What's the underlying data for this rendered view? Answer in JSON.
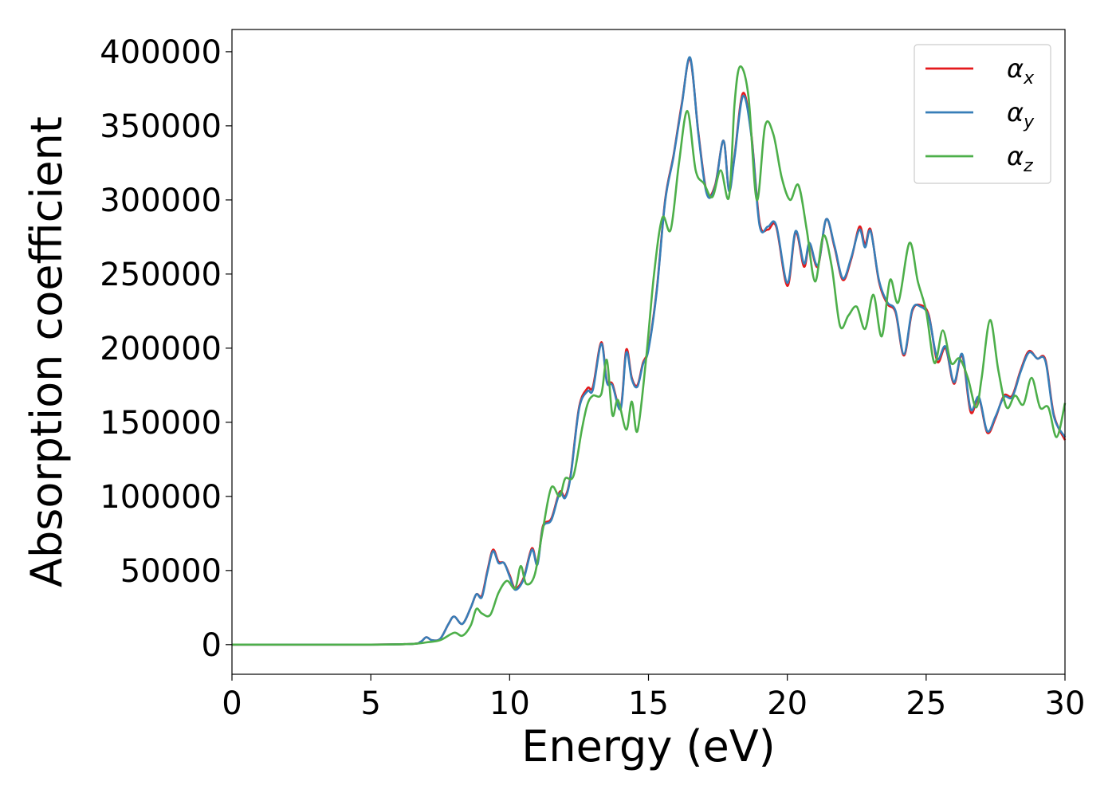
{
  "chart_data": {
    "type": "line",
    "xlabel": "Energy (eV)",
    "ylabel": "Absorption coefficient",
    "xlim": [
      0,
      30
    ],
    "ylim": [
      -20000,
      415000
    ],
    "xticks": [
      "0",
      "5",
      "10",
      "15",
      "20",
      "25",
      "30"
    ],
    "yticks": [
      "0",
      "50000",
      "100000",
      "150000",
      "200000",
      "250000",
      "300000",
      "350000",
      "400000"
    ],
    "legend_position": "top-right",
    "grid": false,
    "series": [
      {
        "name": "αx",
        "symbol": "α",
        "subscript": "x",
        "color": "#e41a1c",
        "x": [
          0,
          5,
          6.5,
          6.8,
          7.0,
          7.2,
          7.5,
          7.8,
          8.0,
          8.3,
          8.6,
          8.8,
          9.0,
          9.2,
          9.4,
          9.6,
          9.8,
          10.0,
          10.2,
          10.5,
          10.8,
          11.0,
          11.2,
          11.5,
          11.8,
          12.0,
          12.2,
          12.5,
          12.8,
          13.0,
          13.3,
          13.5,
          13.7,
          14.0,
          14.2,
          14.4,
          14.6,
          14.8,
          15.0,
          15.3,
          15.6,
          15.9,
          16.2,
          16.5,
          16.8,
          17.1,
          17.4,
          17.7,
          17.9,
          18.1,
          18.4,
          18.7,
          19.0,
          19.3,
          19.6,
          20.0,
          20.3,
          20.6,
          20.8,
          21.1,
          21.4,
          21.7,
          22.0,
          22.3,
          22.6,
          22.8,
          23.0,
          23.3,
          23.6,
          23.9,
          24.2,
          24.5,
          24.8,
          25.1,
          25.4,
          25.7,
          26.0,
          26.3,
          26.6,
          26.9,
          27.2,
          27.5,
          27.8,
          28.1,
          28.4,
          28.7,
          29.0,
          29.3,
          29.6,
          30.0
        ],
        "values": [
          0,
          0,
          500,
          2000,
          5000,
          3000,
          4000,
          14000,
          19000,
          14000,
          25000,
          34000,
          33000,
          50000,
          64000,
          56000,
          55000,
          47000,
          38000,
          45000,
          65000,
          55000,
          80000,
          85000,
          103000,
          100000,
          115000,
          160000,
          173000,
          174000,
          204000,
          178000,
          176000,
          160000,
          199000,
          180000,
          175000,
          190000,
          200000,
          240000,
          300000,
          330000,
          365000,
          395000,
          345000,
          305000,
          310000,
          340000,
          307000,
          330000,
          372000,
          345000,
          285000,
          280000,
          282000,
          242000,
          278000,
          255000,
          270000,
          255000,
          287000,
          268000,
          246000,
          260000,
          282000,
          270000,
          280000,
          245000,
          230000,
          224000,
          195000,
          225000,
          229000,
          222000,
          191000,
          200000,
          176000,
          195000,
          157000,
          166000,
          143000,
          153000,
          168000,
          168000,
          185000,
          198000,
          193000,
          192000,
          155000,
          138000
        ]
      },
      {
        "name": "αy",
        "symbol": "α",
        "subscript": "y",
        "color": "#377eb8",
        "x": [
          0,
          5,
          6.5,
          6.8,
          7.0,
          7.2,
          7.5,
          7.8,
          8.0,
          8.3,
          8.6,
          8.8,
          9.0,
          9.2,
          9.4,
          9.6,
          9.8,
          10.0,
          10.2,
          10.5,
          10.8,
          11.0,
          11.2,
          11.5,
          11.8,
          12.0,
          12.2,
          12.5,
          12.8,
          13.0,
          13.3,
          13.5,
          13.7,
          14.0,
          14.2,
          14.4,
          14.6,
          14.8,
          15.0,
          15.3,
          15.6,
          15.9,
          16.2,
          16.5,
          16.8,
          17.1,
          17.4,
          17.7,
          17.9,
          18.1,
          18.4,
          18.7,
          19.0,
          19.3,
          19.6,
          20.0,
          20.3,
          20.6,
          20.8,
          21.1,
          21.4,
          21.7,
          22.0,
          22.3,
          22.6,
          22.8,
          23.0,
          23.3,
          23.6,
          23.9,
          24.2,
          24.5,
          24.8,
          25.1,
          25.4,
          25.7,
          26.0,
          26.3,
          26.6,
          26.9,
          27.2,
          27.5,
          27.8,
          28.1,
          28.4,
          28.7,
          29.0,
          29.3,
          29.6,
          30.0
        ],
        "values": [
          0,
          0,
          500,
          2000,
          5000,
          3000,
          4000,
          14000,
          19000,
          14000,
          25000,
          34000,
          32000,
          49000,
          63000,
          55000,
          55000,
          46000,
          37000,
          44000,
          64000,
          54000,
          79000,
          84000,
          102000,
          99000,
          114000,
          159000,
          171000,
          172000,
          203000,
          177000,
          175000,
          159000,
          197000,
          179000,
          174000,
          189000,
          199000,
          239000,
          299000,
          329000,
          364000,
          396000,
          344000,
          304000,
          309000,
          340000,
          306000,
          329000,
          370000,
          344000,
          283000,
          282000,
          283000,
          244000,
          279000,
          257000,
          271000,
          256000,
          287000,
          269000,
          247000,
          261000,
          280000,
          268000,
          279000,
          246000,
          231000,
          225000,
          196000,
          226000,
          228000,
          221000,
          193000,
          201000,
          177000,
          196000,
          159000,
          167000,
          144000,
          154000,
          167000,
          167000,
          184000,
          197000,
          193000,
          191000,
          154000,
          140000
        ]
      },
      {
        "name": "αz",
        "symbol": "α",
        "subscript": "z",
        "color": "#4daf4a",
        "x": [
          0,
          5,
          6.5,
          7.0,
          7.5,
          8.0,
          8.3,
          8.6,
          8.8,
          9.0,
          9.3,
          9.6,
          9.9,
          10.2,
          10.4,
          10.6,
          10.9,
          11.2,
          11.5,
          11.8,
          12.0,
          12.3,
          12.6,
          12.8,
          13.0,
          13.3,
          13.5,
          13.7,
          13.9,
          14.2,
          14.4,
          14.6,
          14.9,
          15.2,
          15.5,
          15.8,
          16.1,
          16.4,
          16.7,
          17.0,
          17.3,
          17.6,
          17.9,
          18.1,
          18.3,
          18.6,
          18.9,
          19.2,
          19.5,
          19.8,
          20.1,
          20.4,
          20.7,
          21.0,
          21.3,
          21.6,
          21.9,
          22.2,
          22.5,
          22.8,
          23.1,
          23.4,
          23.7,
          24.0,
          24.4,
          24.7,
          25.0,
          25.3,
          25.6,
          25.9,
          26.2,
          26.5,
          26.8,
          27.0,
          27.3,
          27.6,
          27.9,
          28.2,
          28.5,
          28.8,
          29.1,
          29.4,
          29.7,
          30.0
        ],
        "values": [
          0,
          0,
          500,
          1500,
          3000,
          8000,
          6000,
          13000,
          24000,
          21000,
          20000,
          35000,
          43000,
          38000,
          53000,
          41000,
          47000,
          78000,
          106000,
          100000,
          112000,
          114000,
          145000,
          162000,
          168000,
          169000,
          192000,
          155000,
          165000,
          145000,
          164000,
          144000,
          190000,
          250000,
          288000,
          280000,
          325000,
          360000,
          320000,
          311000,
          302000,
          320000,
          302000,
          365000,
          390000,
          370000,
          300000,
          350000,
          344000,
          315000,
          300000,
          310000,
          280000,
          245000,
          276000,
          255000,
          215000,
          222000,
          228000,
          213000,
          236000,
          208000,
          246000,
          231000,
          271000,
          245000,
          225000,
          190000,
          212000,
          190000,
          193000,
          180000,
          160000,
          180000,
          219000,
          185000,
          160000,
          168000,
          162000,
          180000,
          160000,
          160000,
          140000,
          163000
        ]
      }
    ]
  }
}
